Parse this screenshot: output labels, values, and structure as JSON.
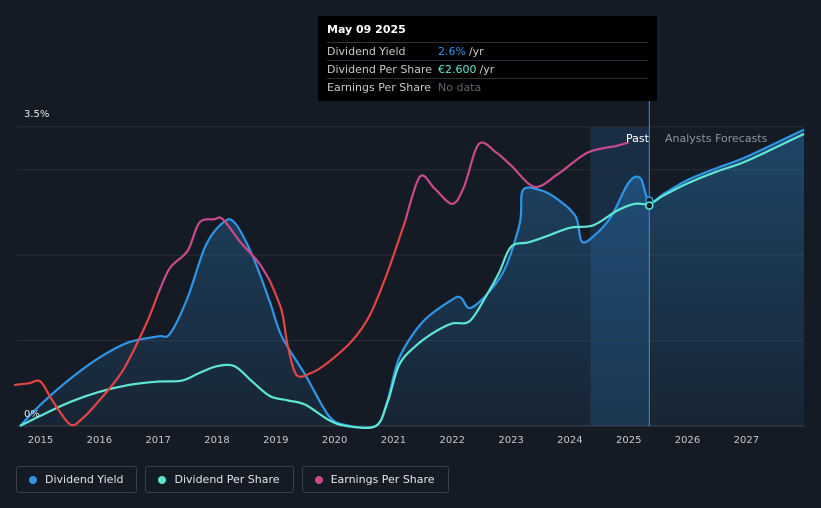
{
  "tooltip": {
    "date": "May 09 2025",
    "rows": [
      {
        "label": "Dividend Yield",
        "value": "2.6%",
        "unit": "/yr",
        "color": "#2f95e6"
      },
      {
        "label": "Dividend Per Share",
        "value": "€2.600",
        "unit": "/yr",
        "color": "#5ee6d3"
      },
      {
        "label": "Earnings Per Share",
        "value": "No data",
        "unit": "",
        "color": "#5d6470"
      }
    ]
  },
  "regions": {
    "past": "Past",
    "forecast": "Analysts Forecasts"
  },
  "colors": {
    "background": "#151b24",
    "dividend_yield": "#2f95e6",
    "dividend_per_share": "#5ee6d3",
    "earnings_per_share_positive": "#c84a8c",
    "earnings_per_share_negative": "#e04444"
  },
  "legend": [
    {
      "label": "Dividend Yield",
      "color": "#2f95e6"
    },
    {
      "label": "Dividend Per Share",
      "color": "#5ee6d3"
    },
    {
      "label": "Earnings Per Share",
      "color": "#c84a8c"
    }
  ],
  "chart_data": {
    "type": "line",
    "y_tick_labels": [
      "3.5%",
      "0%"
    ],
    "ylim": [
      0,
      3.5
    ],
    "xlim": [
      2014.6,
      2027.98
    ],
    "x_ticks": [
      2015,
      2016,
      2017,
      2018,
      2019,
      2020,
      2021,
      2022,
      2023,
      2024,
      2025,
      2026,
      2027
    ],
    "past_forecast_boundary": 2025.35,
    "highlight_start": 2024.35,
    "grid": true,
    "series": [
      {
        "name": "Dividend Yield",
        "points": [
          [
            2014.65,
            0
          ],
          [
            2015,
            0.25
          ],
          [
            2015.5,
            0.55
          ],
          [
            2016,
            0.8
          ],
          [
            2016.5,
            0.98
          ],
          [
            2017,
            1.05
          ],
          [
            2017.2,
            1.08
          ],
          [
            2017.5,
            1.5
          ],
          [
            2017.8,
            2.1
          ],
          [
            2018.1,
            2.38
          ],
          [
            2018.3,
            2.38
          ],
          [
            2018.6,
            2.0
          ],
          [
            2018.9,
            1.45
          ],
          [
            2019.1,
            1.05
          ],
          [
            2019.5,
            0.6
          ],
          [
            2019.9,
            0.12
          ],
          [
            2020.2,
            0.01
          ],
          [
            2020.7,
            0
          ],
          [
            2020.9,
            0.3
          ],
          [
            2021.1,
            0.8
          ],
          [
            2021.5,
            1.22
          ],
          [
            2022.0,
            1.48
          ],
          [
            2022.15,
            1.5
          ],
          [
            2022.3,
            1.38
          ],
          [
            2022.6,
            1.55
          ],
          [
            2022.9,
            1.85
          ],
          [
            2023.15,
            2.38
          ],
          [
            2023.2,
            2.76
          ],
          [
            2023.5,
            2.76
          ],
          [
            2023.8,
            2.65
          ],
          [
            2024.1,
            2.45
          ],
          [
            2024.2,
            2.16
          ],
          [
            2024.4,
            2.22
          ],
          [
            2024.7,
            2.45
          ],
          [
            2025.0,
            2.85
          ],
          [
            2025.2,
            2.9
          ],
          [
            2025.35,
            2.62
          ],
          [
            2025.6,
            2.72
          ],
          [
            2026,
            2.88
          ],
          [
            2026.5,
            3.02
          ],
          [
            2027,
            3.15
          ],
          [
            2027.98,
            3.47
          ]
        ]
      },
      {
        "name": "Dividend Per Share",
        "points": [
          [
            2014.65,
            0
          ],
          [
            2015,
            0.12
          ],
          [
            2015.5,
            0.28
          ],
          [
            2016,
            0.4
          ],
          [
            2016.5,
            0.48
          ],
          [
            2017,
            0.52
          ],
          [
            2017.4,
            0.53
          ],
          [
            2017.7,
            0.62
          ],
          [
            2018,
            0.7
          ],
          [
            2018.3,
            0.7
          ],
          [
            2018.6,
            0.52
          ],
          [
            2018.9,
            0.35
          ],
          [
            2019.2,
            0.3
          ],
          [
            2019.5,
            0.25
          ],
          [
            2019.9,
            0.07
          ],
          [
            2020.2,
            0
          ],
          [
            2020.7,
            0
          ],
          [
            2020.9,
            0.28
          ],
          [
            2021.1,
            0.72
          ],
          [
            2021.4,
            0.95
          ],
          [
            2021.7,
            1.1
          ],
          [
            2022,
            1.2
          ],
          [
            2022.3,
            1.23
          ],
          [
            2022.6,
            1.55
          ],
          [
            2022.8,
            1.8
          ],
          [
            2023,
            2.1
          ],
          [
            2023.3,
            2.15
          ],
          [
            2023.6,
            2.22
          ],
          [
            2024,
            2.32
          ],
          [
            2024.4,
            2.35
          ],
          [
            2024.8,
            2.52
          ],
          [
            2025.1,
            2.6
          ],
          [
            2025.35,
            2.6
          ],
          [
            2025.6,
            2.7
          ],
          [
            2026,
            2.84
          ],
          [
            2026.5,
            2.98
          ],
          [
            2027,
            3.1
          ],
          [
            2027.98,
            3.42
          ]
        ]
      },
      {
        "name": "Earnings Per Share",
        "points": [
          [
            2014.55,
            0.48
          ],
          [
            2014.8,
            0.5
          ],
          [
            2015.0,
            0.52
          ],
          [
            2015.2,
            0.3
          ],
          [
            2015.5,
            0.02
          ],
          [
            2015.7,
            0.08
          ],
          [
            2016.0,
            0.3
          ],
          [
            2016.4,
            0.65
          ],
          [
            2016.8,
            1.2
          ],
          [
            2017.0,
            1.55
          ],
          [
            2017.2,
            1.85
          ],
          [
            2017.5,
            2.05
          ],
          [
            2017.7,
            2.38
          ],
          [
            2017.95,
            2.42
          ],
          [
            2018.1,
            2.42
          ],
          [
            2018.4,
            2.15
          ],
          [
            2018.7,
            1.92
          ],
          [
            2018.9,
            1.7
          ],
          [
            2019.1,
            1.35
          ],
          [
            2019.2,
            0.95
          ],
          [
            2019.35,
            0.6
          ],
          [
            2019.6,
            0.62
          ],
          [
            2019.9,
            0.75
          ],
          [
            2020.3,
            1.0
          ],
          [
            2020.6,
            1.3
          ],
          [
            2020.9,
            1.8
          ],
          [
            2021.2,
            2.4
          ],
          [
            2021.45,
            2.92
          ],
          [
            2021.7,
            2.78
          ],
          [
            2022.0,
            2.6
          ],
          [
            2022.2,
            2.8
          ],
          [
            2022.45,
            3.3
          ],
          [
            2022.75,
            3.2
          ],
          [
            2023.0,
            3.05
          ],
          [
            2023.4,
            2.8
          ],
          [
            2023.8,
            2.95
          ],
          [
            2024.3,
            3.2
          ],
          [
            2024.8,
            3.28
          ],
          [
            2025.0,
            3.32
          ]
        ]
      }
    ]
  }
}
